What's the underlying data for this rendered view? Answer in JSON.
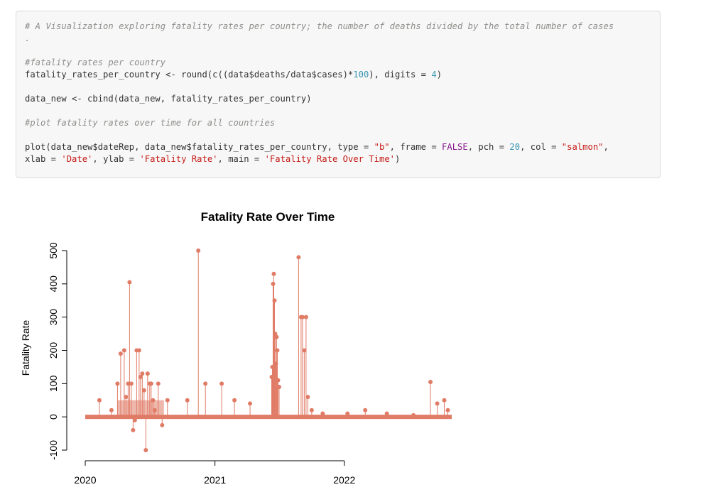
{
  "code": {
    "line1": "# A Visualization exploring fatality rates per country; the number of deaths divided by the total number of cases",
    "line2": ".",
    "line4": "#fatality rates per country",
    "line5_a": "fatality_rates_per_country <- round(c((data$deaths/data$cases)*",
    "line5_num1": "100",
    "line5_b": "), digits = ",
    "line5_num2": "4",
    "line5_c": ")",
    "line7": "data_new <- cbind(data_new, fatality_rates_per_country)",
    "line9": "#plot fatality rates over time for all countries",
    "line11_a": "plot(data_new$dateRep, data_new$fatality_rates_per_country, type = ",
    "line11_s1": "\"b\"",
    "line11_b": ", frame = ",
    "line11_c1": "FALSE",
    "line11_c": ", pch = ",
    "line11_n1": "20",
    "line11_d": ", col = ",
    "line11_s2": "\"salmon\"",
    "line11_e": ",",
    "line12_a": "xlab = ",
    "line12_s1": "'Date'",
    "line12_b": ", ylab = ",
    "line12_s2": "'Fatality Rate'",
    "line12_c": ", main = ",
    "line12_s3": "'Fatality Rate Over Time'",
    "line12_d": ")"
  },
  "colors": {
    "series": "#e07b66",
    "code_bg": "#f7f7f7"
  },
  "chart_data": {
    "type": "scatter",
    "title": "Fatality Rate Over Time",
    "xlabel": "",
    "ylabel": "Fatality Rate",
    "xlim": [
      "2020-01-01",
      "2022-10-31"
    ],
    "ylim": [
      -100,
      500
    ],
    "x_ticks": [
      "2020",
      "2021",
      "2022"
    ],
    "y_ticks": [
      "-100",
      "0",
      "100",
      "200",
      "300",
      "400",
      "500"
    ],
    "grid": false,
    "series": [
      {
        "x": [
          "2020-02-10",
          "2020-03-15",
          "2020-04-01",
          "2020-04-10",
          "2020-04-20",
          "2020-04-25",
          "2020-05-01",
          "2020-05-05",
          "2020-05-10",
          "2020-05-15",
          "2020-05-20",
          "2020-05-25",
          "2020-06-01",
          "2020-06-05",
          "2020-06-10",
          "2020-06-15",
          "2020-06-20",
          "2020-06-25",
          "2020-07-01",
          "2020-07-05",
          "2020-07-10",
          "2020-07-15",
          "2020-07-25",
          "2020-08-05",
          "2020-08-20",
          "2020-10-15",
          "2020-11-15",
          "2020-12-05",
          "2021-01-20",
          "2021-02-25",
          "2021-04-10",
          "2021-06-10",
          "2021-06-12",
          "2021-06-14",
          "2021-06-16",
          "2021-06-18",
          "2021-06-20",
          "2021-06-22",
          "2021-06-24",
          "2021-06-26",
          "2021-06-28",
          "2021-07-01",
          "2021-08-25",
          "2021-09-01",
          "2021-09-05",
          "2021-09-10",
          "2021-09-15",
          "2021-09-20",
          "2021-10-01",
          "2021-11-01",
          "2022-01-10",
          "2022-03-01",
          "2022-05-01",
          "2022-07-15",
          "2022-09-01",
          "2022-09-20",
          "2022-10-10",
          "2022-10-20"
        ],
        "values": [
          50,
          20,
          100,
          190,
          200,
          60,
          100,
          405,
          100,
          -40,
          -10,
          200,
          200,
          120,
          130,
          80,
          -100,
          130,
          100,
          100,
          50,
          20,
          100,
          -25,
          50,
          50,
          500,
          100,
          100,
          50,
          40,
          120,
          150,
          400,
          430,
          350,
          250,
          160,
          240,
          200,
          110,
          90,
          480,
          300,
          300,
          200,
          300,
          60,
          20,
          10,
          10,
          20,
          10,
          5,
          105,
          40,
          50,
          20
        ]
      }
    ]
  }
}
